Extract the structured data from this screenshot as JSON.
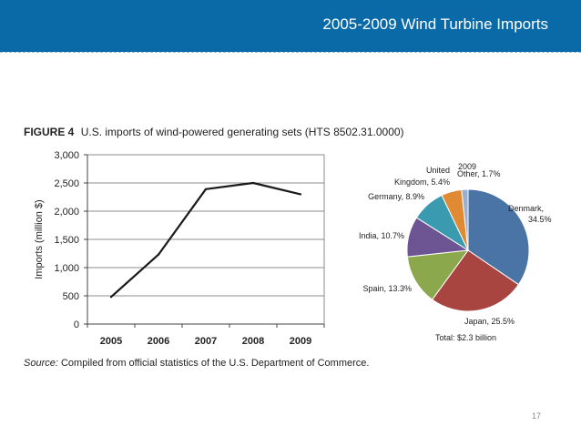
{
  "header": {
    "title": "2005-2009 Wind Turbine Imports"
  },
  "figure": {
    "label": "FIGURE 4",
    "title": "U.S. imports of wind-powered generating sets (HTS 8502.31.0000)"
  },
  "source": {
    "label": "Source:",
    "text": "Compiled from official statistics of the U.S. Department of Commerce."
  },
  "page_number": "17",
  "colors": {
    "header": "#0a6aa8",
    "line": "#1a1a1a",
    "grid": "#8c8c8c"
  },
  "chart_data": [
    {
      "type": "line",
      "title": "U.S. imports of wind-powered generating sets (HTS 8502.31.0000)",
      "xlabel": "",
      "ylabel": "Imports (million $)",
      "categories": [
        "2005",
        "2006",
        "2007",
        "2008",
        "2009"
      ],
      "values": [
        480,
        1230,
        2390,
        2500,
        2300
      ],
      "ylim": [
        0,
        3000
      ],
      "yticks": [
        0,
        500,
        1000,
        1500,
        2000,
        2500,
        3000
      ],
      "ytick_labels": [
        "0",
        "500",
        "1,000",
        "1,500",
        "2,000",
        "2,500",
        "3,000"
      ],
      "grid": true
    },
    {
      "type": "pie",
      "title": "2009",
      "total_label": "Total: $2.3 billion",
      "slices": [
        {
          "name": "Denmark",
          "value": 34.5,
          "label": "Denmark, 34.5%",
          "color": "#4a74a6"
        },
        {
          "name": "Japan",
          "value": 25.5,
          "label": "Japan, 25.5%",
          "color": "#a94541"
        },
        {
          "name": "Spain",
          "value": 13.3,
          "label": "Spain, 13.3%",
          "color": "#8ba84c"
        },
        {
          "name": "India",
          "value": 10.7,
          "label": "India, 10.7%",
          "color": "#6d5593"
        },
        {
          "name": "Germany",
          "value": 8.9,
          "label": "Germany, 8.9%",
          "color": "#3a9bb0"
        },
        {
          "name": "United Kingdom",
          "value": 5.4,
          "label_line1": "United",
          "label_line2": "Kingdom, 5.4%",
          "color": "#e08a34"
        },
        {
          "name": "Other",
          "value": 1.7,
          "label": "Other, 1.7%",
          "color": "#9aaed0"
        }
      ]
    }
  ]
}
